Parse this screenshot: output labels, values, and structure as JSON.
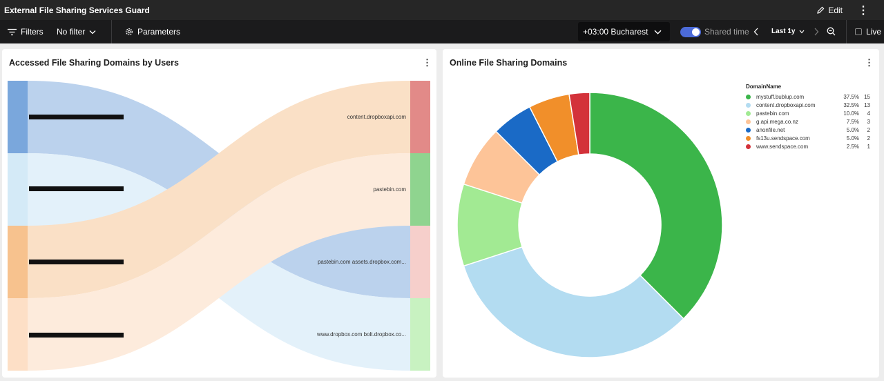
{
  "header": {
    "title": "External File Sharing Services Guard",
    "edit_label": "Edit"
  },
  "toolbar": {
    "filters_label": "Filters",
    "no_filter_label": "No filter",
    "parameters_label": "Parameters",
    "timezone": "+03:00 Bucharest",
    "shared_time_label": "Shared time",
    "time_range": "Last 1y",
    "live_label": "Live",
    "shared_time_enabled": true,
    "live_enabled": false
  },
  "sankey_panel": {
    "title": "Accessed File Sharing Domains by Users",
    "targets": [
      {
        "label": "content.dropboxapi.com",
        "color": "#e28a88"
      },
      {
        "label": "pastebin.com",
        "color": "#8fd48f"
      },
      {
        "label": "pastebin.com assets.dropbox.com...",
        "color": "#f6cfcb"
      },
      {
        "label": "www.dropbox.com bolt.dropbox.co...",
        "color": "#c8f2c1"
      }
    ],
    "sources": [
      {
        "color": "#7aa7dc"
      },
      {
        "color": "#d4eaf7"
      },
      {
        "color": "#f7c28e"
      },
      {
        "color": "#fddfc6"
      }
    ]
  },
  "donut_panel": {
    "title": "Online File Sharing Domains",
    "legend_title": "DomainName",
    "chart_data": {
      "type": "pie",
      "labels": [
        "mystuff.bublup.com",
        "content.dropboxapi.com",
        "pastebin.com",
        "g.api.mega.co.nz",
        "anonfile.net",
        "fs13u.sendspace.com",
        "www.sendspace.com"
      ],
      "values": [
        15,
        13,
        4,
        3,
        2,
        2,
        1
      ],
      "percents": [
        "37.5%",
        "32.5%",
        "10.0%",
        "7.5%",
        "5.0%",
        "5.0%",
        "2.5%"
      ],
      "colors": [
        "#3bb54a",
        "#b3dcf1",
        "#a2ea93",
        "#fdc498",
        "#1a6ac6",
        "#f18f2a",
        "#d3323a"
      ],
      "legend_position": "right"
    }
  }
}
